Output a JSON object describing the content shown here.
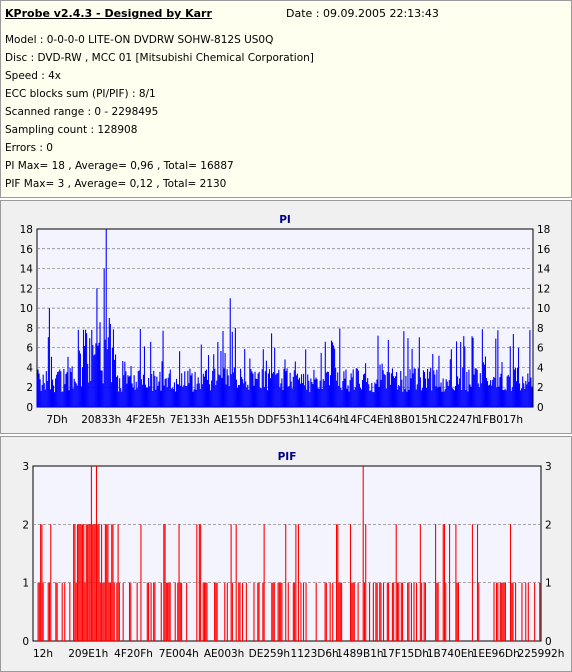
{
  "info": {
    "title": "KProbe v2.4.3 - Designed by Karr",
    "date": "Date : 09.09.2005 22:13:43",
    "lines": [
      "Model : 0-0-0-0 LITE-ON DVDRW SOHW-812S  US0Q",
      "Disc : DVD-RW , MCC 01 [Mitsubishi Chemical Corporation]",
      "Speed : 4x",
      "ECC blocks sum (PI/PIF) : 8/1",
      "Scanned range : 0 - 2298495",
      "Sampling count : 128908",
      "Errors : 0",
      "PI Max= 18 , Average= 0,96 , Total= 16887",
      "PIF Max= 3 , Average= 0,12 , Total= 2130"
    ]
  },
  "chart_data": [
    {
      "type": "bar",
      "title": "PI",
      "color": "#0000ff",
      "ylim": [
        0,
        18
      ],
      "yticks": [
        0,
        2,
        4,
        6,
        8,
        10,
        12,
        14,
        16,
        18
      ],
      "xtick_labels": [
        "7Dh",
        "20833h",
        "4F2E5h",
        "7E133h",
        "AE155h",
        "DDF53h",
        "114C64h",
        "14FC4Eh",
        "18B015h",
        "1C2247h",
        "1FB017h"
      ],
      "grid": true,
      "peaks": [
        [
          0.025,
          10
        ],
        [
          0.12,
          12
        ],
        [
          0.135,
          14
        ],
        [
          0.14,
          18
        ],
        [
          0.145,
          9
        ],
        [
          0.39,
          11
        ],
        [
          0.4,
          8
        ],
        [
          0.48,
          6
        ],
        [
          0.88,
          7
        ],
        [
          0.97,
          6
        ]
      ],
      "baseline": 1.5,
      "noise_max": 4,
      "dense_region": [
        0.08,
        0.16
      ],
      "dense_level": 7
    },
    {
      "type": "bar",
      "title": "PIF",
      "color": "#ff0000",
      "ylim": [
        0,
        3
      ],
      "yticks": [
        0,
        1,
        2,
        3
      ],
      "xtick_labels": [
        "12h",
        "209E1h",
        "4F20Fh",
        "7E004h",
        "AE003h",
        "DE259h",
        "1123D6h",
        "1489B1h",
        "17F15Dh",
        "1B740Eh",
        "1EE96Dh",
        "225992h"
      ],
      "grid": true,
      "peaks": [
        [
          0.115,
          3
        ],
        [
          0.125,
          3
        ],
        [
          0.65,
          3
        ]
      ],
      "dense_region": [
        0.08,
        0.16
      ],
      "dense_level": 2
    }
  ]
}
